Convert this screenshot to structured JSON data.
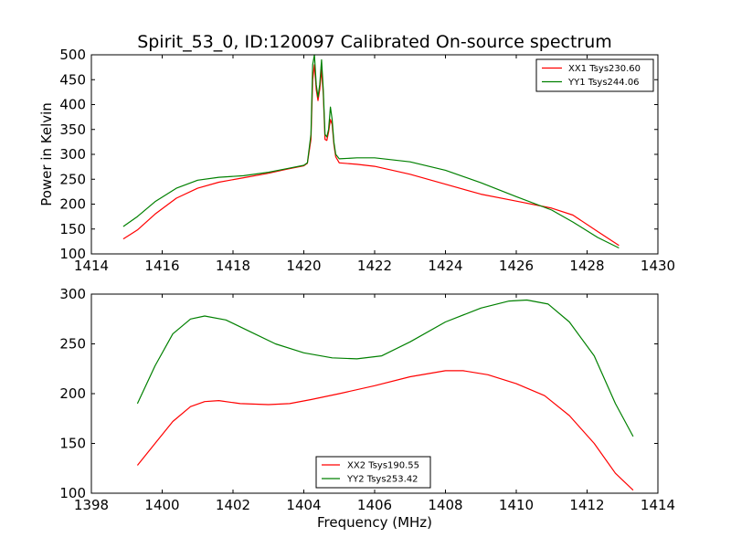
{
  "title": "Spirit_53_0, ID:120097 Calibrated On-source spectrum",
  "ylabel": "Power in Kelvin",
  "xlabel": "Frequency (MHz)",
  "chart_data": [
    {
      "type": "line",
      "xlim": [
        1414,
        1430
      ],
      "ylim": [
        100,
        500
      ],
      "xticks": [
        1414,
        1416,
        1418,
        1420,
        1422,
        1424,
        1426,
        1428,
        1430
      ],
      "yticks": [
        100,
        150,
        200,
        250,
        300,
        350,
        400,
        450,
        500
      ],
      "legend_position": "top-right",
      "grid": false,
      "series": [
        {
          "name": "XX1 Tsys230.60",
          "color": "#ff0000",
          "points": [
            [
              1414.9,
              130
            ],
            [
              1415.3,
              148
            ],
            [
              1415.8,
              180
            ],
            [
              1416.4,
              212
            ],
            [
              1417.0,
              232
            ],
            [
              1417.6,
              244
            ],
            [
              1418.3,
              253
            ],
            [
              1419.0,
              262
            ],
            [
              1419.5,
              270
            ],
            [
              1420.0,
              277
            ],
            [
              1420.1,
              282
            ],
            [
              1420.2,
              330
            ],
            [
              1420.25,
              450
            ],
            [
              1420.3,
              480
            ],
            [
              1420.35,
              430
            ],
            [
              1420.4,
              408
            ],
            [
              1420.45,
              430
            ],
            [
              1420.5,
              470
            ],
            [
              1420.55,
              420
            ],
            [
              1420.6,
              330
            ],
            [
              1420.65,
              328
            ],
            [
              1420.7,
              345
            ],
            [
              1420.75,
              370
            ],
            [
              1420.8,
              360
            ],
            [
              1420.85,
              320
            ],
            [
              1420.9,
              295
            ],
            [
              1421.0,
              283
            ],
            [
              1421.5,
              280
            ],
            [
              1422.0,
              276
            ],
            [
              1423.0,
              260
            ],
            [
              1424.0,
              240
            ],
            [
              1425.0,
              220
            ],
            [
              1426.0,
              206
            ],
            [
              1427.0,
              192
            ],
            [
              1427.6,
              178
            ],
            [
              1428.3,
              145
            ],
            [
              1428.9,
              117
            ]
          ]
        },
        {
          "name": "YY1 Tsys244.06",
          "color": "#008000",
          "points": [
            [
              1414.9,
              155
            ],
            [
              1415.3,
              175
            ],
            [
              1415.8,
              205
            ],
            [
              1416.4,
              232
            ],
            [
              1417.0,
              248
            ],
            [
              1417.6,
              254
            ],
            [
              1418.3,
              257
            ],
            [
              1419.0,
              264
            ],
            [
              1419.5,
              271
            ],
            [
              1420.0,
              278
            ],
            [
              1420.1,
              283
            ],
            [
              1420.2,
              340
            ],
            [
              1420.25,
              480
            ],
            [
              1420.3,
              500
            ],
            [
              1420.35,
              440
            ],
            [
              1420.4,
              415
            ],
            [
              1420.45,
              440
            ],
            [
              1420.5,
              490
            ],
            [
              1420.55,
              430
            ],
            [
              1420.6,
              340
            ],
            [
              1420.65,
              335
            ],
            [
              1420.7,
              350
            ],
            [
              1420.75,
              395
            ],
            [
              1420.8,
              370
            ],
            [
              1420.85,
              325
            ],
            [
              1420.9,
              300
            ],
            [
              1421.0,
              291
            ],
            [
              1421.5,
              293
            ],
            [
              1422.0,
              293
            ],
            [
              1423.0,
              285
            ],
            [
              1424.0,
              268
            ],
            [
              1425.0,
              243
            ],
            [
              1426.0,
              215
            ],
            [
              1427.0,
              188
            ],
            [
              1427.6,
              164
            ],
            [
              1428.3,
              133
            ],
            [
              1428.9,
              112
            ]
          ]
        }
      ]
    },
    {
      "type": "line",
      "xlim": [
        1398,
        1414
      ],
      "ylim": [
        100,
        300
      ],
      "xticks": [
        1398,
        1400,
        1402,
        1404,
        1406,
        1408,
        1410,
        1412,
        1414
      ],
      "yticks": [
        100,
        150,
        200,
        250,
        300
      ],
      "legend_position": "bottom-center",
      "grid": false,
      "series": [
        {
          "name": "XX2 Tsys190.55",
          "color": "#ff0000",
          "points": [
            [
              1399.3,
              128
            ],
            [
              1399.8,
              150
            ],
            [
              1400.3,
              172
            ],
            [
              1400.8,
              187
            ],
            [
              1401.2,
              192
            ],
            [
              1401.6,
              193
            ],
            [
              1402.2,
              190
            ],
            [
              1403.0,
              189
            ],
            [
              1403.6,
              190
            ],
            [
              1404.2,
              194
            ],
            [
              1405.0,
              200
            ],
            [
              1406.0,
              208
            ],
            [
              1407.0,
              217
            ],
            [
              1408.0,
              223
            ],
            [
              1408.5,
              223
            ],
            [
              1409.2,
              219
            ],
            [
              1410.0,
              210
            ],
            [
              1410.8,
              198
            ],
            [
              1411.5,
              178
            ],
            [
              1412.2,
              150
            ],
            [
              1412.8,
              120
            ],
            [
              1413.3,
              103
            ]
          ]
        },
        {
          "name": "YY2 Tsys253.42",
          "color": "#008000",
          "points": [
            [
              1399.3,
              190
            ],
            [
              1399.8,
              228
            ],
            [
              1400.3,
              260
            ],
            [
              1400.8,
              275
            ],
            [
              1401.2,
              278
            ],
            [
              1401.8,
              274
            ],
            [
              1402.5,
              262
            ],
            [
              1403.2,
              250
            ],
            [
              1404.0,
              241
            ],
            [
              1404.8,
              236
            ],
            [
              1405.5,
              235
            ],
            [
              1406.2,
              238
            ],
            [
              1407.0,
              252
            ],
            [
              1408.0,
              272
            ],
            [
              1409.0,
              286
            ],
            [
              1409.8,
              293
            ],
            [
              1410.3,
              294
            ],
            [
              1410.9,
              290
            ],
            [
              1411.5,
              272
            ],
            [
              1412.2,
              238
            ],
            [
              1412.8,
              190
            ],
            [
              1413.3,
              157
            ]
          ]
        }
      ]
    }
  ]
}
